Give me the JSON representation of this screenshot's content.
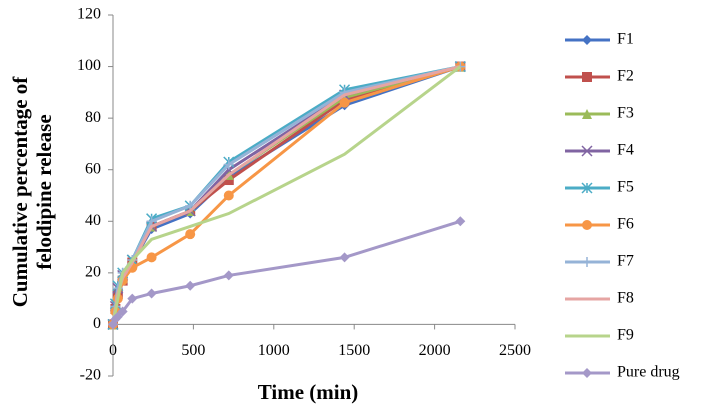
{
  "chart_data": {
    "type": "line",
    "y_label": [
      "Cumulative percentage of",
      "felodipine release"
    ],
    "x_label": "Time (min)",
    "x": [
      0,
      15,
      30,
      60,
      120,
      240,
      480,
      720,
      1440,
      2160
    ],
    "series": [
      {
        "name": "F1",
        "color": "#4472c4",
        "marker": "diamond",
        "values": [
          0,
          5,
          10,
          17,
          24,
          37,
          43,
          57,
          85,
          100
        ]
      },
      {
        "name": "F2",
        "color": "#c0504d",
        "marker": "square",
        "values": [
          0,
          6,
          12,
          17,
          24,
          38,
          44,
          56,
          87,
          100
        ]
      },
      {
        "name": "F3",
        "color": "#9bbb59",
        "marker": "triangle",
        "values": [
          0,
          6,
          12,
          18,
          25,
          38,
          44,
          58,
          88,
          100
        ]
      },
      {
        "name": "F4",
        "color": "#8064a2",
        "marker": "x",
        "values": [
          0,
          7,
          14,
          19,
          25,
          38,
          44,
          60,
          89,
          100
        ]
      },
      {
        "name": "F5",
        "color": "#4bacc6",
        "marker": "star",
        "values": [
          0,
          8,
          15,
          20,
          25,
          41,
          46,
          63,
          91,
          100
        ]
      },
      {
        "name": "F6",
        "color": "#f79646",
        "marker": "circle",
        "values": [
          0,
          5,
          10,
          17,
          22,
          26,
          35,
          50,
          86,
          100
        ]
      },
      {
        "name": "F7",
        "color": "#95b3d7",
        "marker": "plus",
        "values": [
          0,
          7,
          14,
          20,
          25,
          40,
          46,
          62,
          90,
          100
        ]
      },
      {
        "name": "F8",
        "color": "#e6a5a3",
        "marker": "none",
        "values": [
          0,
          6,
          12,
          18,
          24,
          38,
          44,
          58,
          89,
          100
        ]
      },
      {
        "name": "F9",
        "color": "#b7d48b",
        "marker": "none",
        "values": [
          0,
          5,
          10,
          20,
          25,
          33,
          38,
          43,
          66,
          100
        ]
      },
      {
        "name": "Pure drug",
        "color": "#a498c8",
        "marker": "diamond",
        "values": [
          0,
          2,
          3,
          5,
          10,
          12,
          15,
          19,
          26,
          40
        ]
      }
    ],
    "xlim": [
      0,
      2500
    ],
    "xticks": [
      0,
      500,
      1000,
      1500,
      2000,
      2500
    ],
    "ylim": [
      -20,
      120
    ],
    "yticks": [
      -20,
      0,
      20,
      40,
      60,
      80,
      100,
      120
    ],
    "grid": false,
    "legend": "right"
  }
}
